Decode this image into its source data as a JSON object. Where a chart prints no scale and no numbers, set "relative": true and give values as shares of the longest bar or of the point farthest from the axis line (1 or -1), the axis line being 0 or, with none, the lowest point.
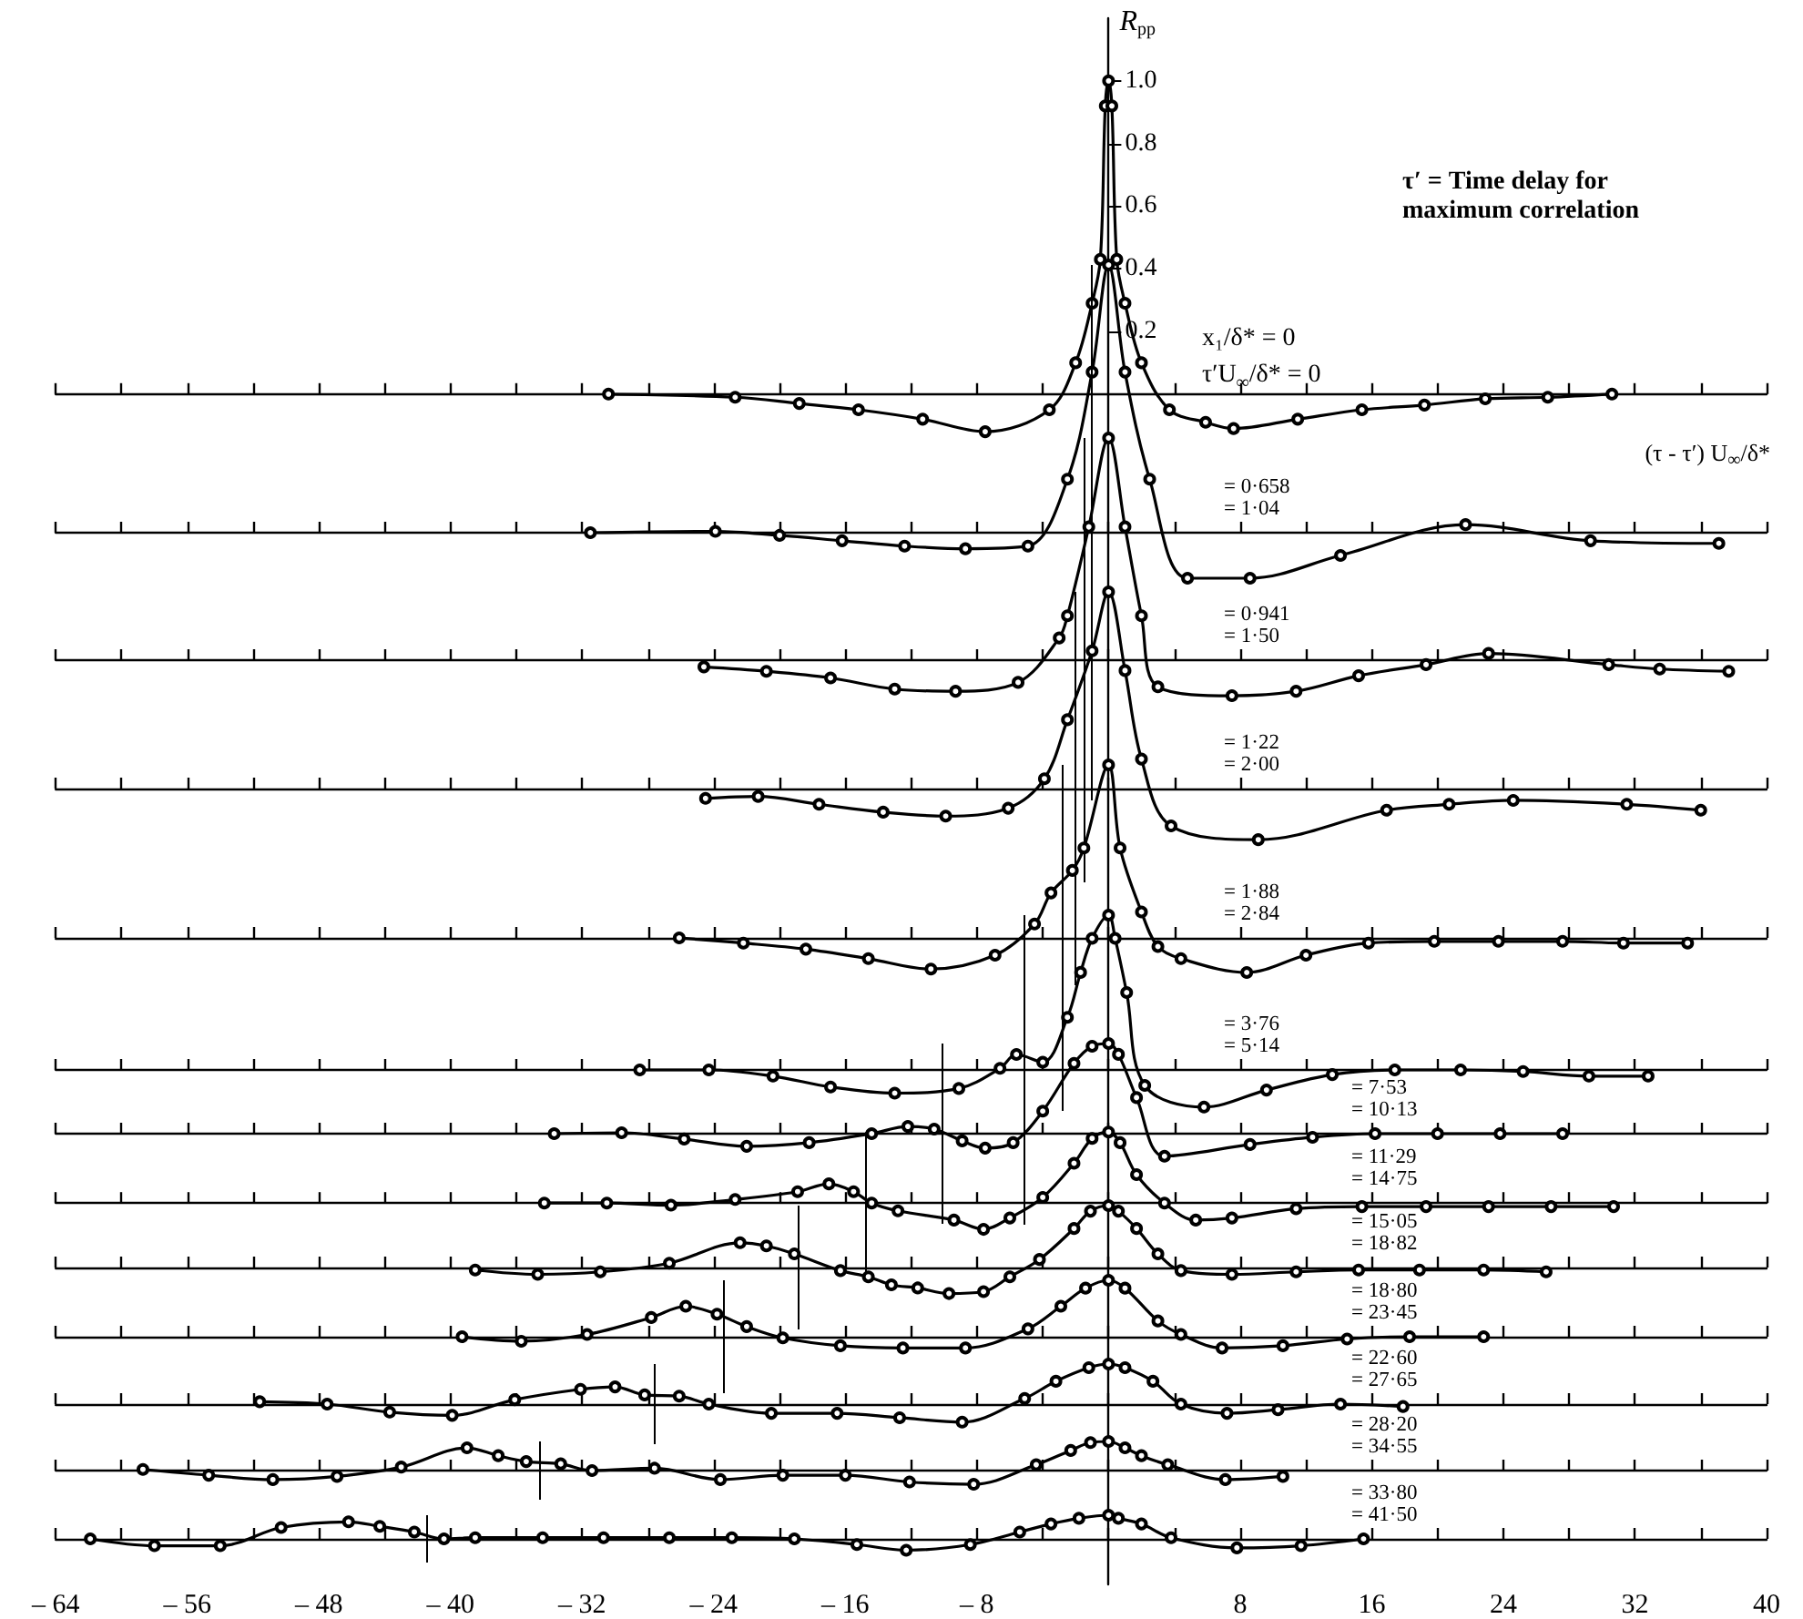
{
  "chart_data": [
    {
      "type": "line",
      "xlabel": "(τ - τ′) U$_{∞}$/δ*",
      "ylabel": "R$_{pp}$",
      "xlim": [
        -64,
        40
      ],
      "ylim": [
        -3.8,
        1.2
      ],
      "xticks": [
        {
          "value": -64,
          "label": "– 64"
        },
        {
          "value": -60,
          "label": null
        },
        {
          "value": -56,
          "label": "– 56"
        },
        {
          "value": -52,
          "label": null
        },
        {
          "value": -48,
          "label": "– 48"
        },
        {
          "value": -44,
          "label": null
        },
        {
          "value": -40,
          "label": "– 40"
        },
        {
          "value": -36,
          "label": null
        },
        {
          "value": -32,
          "label": "– 32"
        },
        {
          "value": -28,
          "label": null
        },
        {
          "value": -24,
          "label": "– 24"
        },
        {
          "value": -20,
          "label": null
        },
        {
          "value": -16,
          "label": "– 16"
        },
        {
          "value": -12,
          "label": null
        },
        {
          "value": -8,
          "label": "– 8"
        },
        {
          "value": -4,
          "label": null
        },
        {
          "value": 4,
          "label": null
        },
        8,
        {
          "value": 12,
          "label": null
        },
        16,
        {
          "value": 20,
          "label": null
        },
        24,
        {
          "value": 28,
          "label": null
        },
        32,
        {
          "value": 36,
          "label": null
        },
        40
      ],
      "yticks": [
        0.2,
        0.4,
        0.6,
        0.8,
        {
          "value": 1.0,
          "label": "1.0"
        }
      ],
      "annotations": [
        "τ′ = Time delay for maximum correlation",
        "x₁/δ* = 0",
        "τ′U$_{∞}$/δ* = 0"
      ],
      "marker": "circle",
      "color": "#000000",
      "x": [
        -30.4,
        -22.7,
        -18.8,
        -15.2,
        -11.3,
        -7.5,
        -3.6,
        -2,
        -1,
        -0.5,
        -0.2,
        0,
        0.2,
        0.5,
        1,
        2,
        3.7,
        5.9,
        7.6,
        11.5,
        15.4,
        19.2,
        22.9,
        26.7,
        30.6
      ],
      "values": [
        0,
        -0.01,
        -0.03,
        -0.05,
        -0.08,
        -0.12,
        -0.05,
        0.1,
        0.29,
        0.43,
        0.92,
        1.0,
        0.92,
        0.43,
        0.29,
        0.1,
        -0.05,
        -0.09,
        -0.11,
        -0.08,
        -0.05,
        -0.035,
        -0.015,
        -0.01,
        0
      ]
    },
    {
      "type": "line",
      "relative": true,
      "tick_labels": false,
      "xlim": [
        -64,
        40
      ],
      "xticks": [
        -64,
        -60,
        -56,
        -52,
        -48,
        -44,
        -40,
        -36,
        -32,
        -28,
        -24,
        -20,
        -16,
        -12,
        -8,
        -4,
        0,
        4,
        8,
        12,
        16,
        20,
        24,
        28,
        32,
        36,
        40
      ],
      "marker": "circle",
      "color": "#000000",
      "annotations": [
        "= 0·658",
        "= 1·04"
      ],
      "ref_lines": [
        {
          "axis": "x",
          "value": -1.04
        }
      ],
      "x": [
        -31.5,
        -23.9,
        -20,
        -16.2,
        -12.4,
        -8.7,
        -4.9,
        -2.5,
        -1,
        0,
        1,
        2.5,
        4.8,
        8.6,
        14.1,
        21.7,
        29.3,
        37.1
      ],
      "values": [
        0,
        0.005,
        -0.01,
        -0.03,
        -0.05,
        -0.06,
        -0.05,
        0.2,
        0.6,
        1,
        0.6,
        0.2,
        -0.17,
        -0.17,
        -0.085,
        0.03,
        -0.03,
        -0.04
      ]
    },
    {
      "type": "line",
      "relative": true,
      "tick_labels": false,
      "xlim": [
        -64,
        40
      ],
      "xticks": [
        -64,
        -60,
        -56,
        -52,
        -48,
        -44,
        -40,
        -36,
        -32,
        -28,
        -24,
        -20,
        -16,
        -12,
        -8,
        -4,
        0,
        4,
        8,
        12,
        16,
        20,
        24,
        28,
        32,
        36,
        40
      ],
      "marker": "circle",
      "color": "#000000",
      "annotations": [
        "= 0·941",
        "= 1·50"
      ],
      "ref_lines": [
        {
          "axis": "x",
          "value": -1.5
        }
      ],
      "x": [
        -24.6,
        -20.8,
        -16.9,
        -13,
        -9.3,
        -5.5,
        -3,
        -2.5,
        -1.2,
        0,
        1,
        2,
        3,
        7.5,
        11.4,
        15.2,
        19.3,
        23.1,
        30.4,
        33.5,
        37.7
      ],
      "values": [
        -0.03,
        -0.05,
        -0.08,
        -0.13,
        -0.14,
        -0.1,
        0.1,
        0.2,
        0.6,
        1,
        0.6,
        0.2,
        -0.12,
        -0.16,
        -0.14,
        -0.07,
        -0.02,
        0.03,
        -0.02,
        -0.04,
        -0.05
      ]
    },
    {
      "type": "line",
      "relative": true,
      "tick_labels": false,
      "xlim": [
        -64,
        40
      ],
      "xticks": [
        -64,
        -60,
        -56,
        -52,
        -48,
        -44,
        -40,
        -36,
        -32,
        -28,
        -24,
        -20,
        -16,
        -12,
        -8,
        -4,
        0,
        4,
        8,
        12,
        16,
        20,
        24,
        28,
        32,
        36,
        40
      ],
      "marker": "circle",
      "color": "#000000",
      "annotations": [
        "= 1·22",
        "= 2·00"
      ],
      "ref_lines": [
        {
          "axis": "x",
          "value": -2.0
        }
      ],
      "x": [
        -24.5,
        -21.3,
        -17.6,
        -13.7,
        -9.9,
        -6.1,
        -3.9,
        -2.5,
        -1,
        0,
        1,
        2,
        3.8,
        9.1,
        16.9,
        20.7,
        24.6,
        31.5,
        36
      ],
      "values": [
        -0.05,
        -0.04,
        -0.08,
        -0.12,
        -0.14,
        -0.1,
        0.05,
        0.35,
        0.7,
        1,
        0.6,
        0.15,
        -0.19,
        -0.26,
        -0.11,
        -0.08,
        -0.06,
        -0.08,
        -0.11
      ]
    },
    {
      "type": "line",
      "relative": true,
      "tick_labels": false,
      "xlim": [
        -64,
        40
      ],
      "xticks": [
        -64,
        -60,
        -56,
        -52,
        -48,
        -44,
        -40,
        -36,
        -32,
        -28,
        -24,
        -20,
        -16,
        -12,
        -8,
        -4,
        0,
        4,
        8,
        12,
        16,
        20,
        24,
        28,
        32,
        36,
        40
      ],
      "marker": "circle",
      "color": "#000000",
      "annotations": [
        "= 1·88",
        "= 2·84"
      ],
      "ref_lines": [
        {
          "axis": "x",
          "value": -2.84
        }
      ],
      "x": [
        -26.1,
        -22.2,
        -18.4,
        -14.6,
        -10.8,
        -6.9,
        -4.5,
        -3.5,
        -2.2,
        -1.5,
        0,
        0.7,
        2,
        3,
        4.4,
        8.4,
        12,
        15.8,
        19.8,
        23.7,
        27.6,
        31.3,
        35.2
      ],
      "values": [
        0,
        -0.03,
        -0.065,
        -0.12,
        -0.18,
        -0.1,
        0.08,
        0.26,
        0.39,
        0.52,
        1,
        0.52,
        0.15,
        -0.05,
        -0.12,
        -0.2,
        -0.1,
        -0.03,
        -0.02,
        -0.02,
        -0.02,
        -0.03,
        -0.03
      ]
    },
    {
      "type": "line",
      "relative": true,
      "tick_labels": false,
      "xlim": [
        -64,
        40
      ],
      "xticks": [
        -64,
        -60,
        -56,
        -52,
        -48,
        -44,
        -40,
        -36,
        -32,
        -28,
        -24,
        -20,
        -16,
        -12,
        -8,
        -4,
        0,
        4,
        8,
        12,
        16,
        20,
        24,
        28,
        32,
        36,
        40
      ],
      "marker": "circle",
      "color": "#000000",
      "annotations": [
        "= 3·76",
        "= 5·14"
      ],
      "ref_lines": [
        {
          "axis": "x",
          "value": -5.14
        }
      ],
      "x": [
        -28.5,
        -24.3,
        -20.4,
        -16.9,
        -13,
        -9.1,
        -6.6,
        -5.6,
        -4,
        -2.5,
        -1.7,
        -1,
        0,
        0.4,
        1.1,
        2.2,
        5.8,
        9.6,
        13.6,
        17.4,
        21.4,
        25.2,
        29.2,
        32.8
      ],
      "values": [
        0,
        0,
        -0.04,
        -0.11,
        -0.15,
        -0.12,
        0.01,
        0.1,
        0.05,
        0.34,
        0.63,
        0.85,
        1,
        0.85,
        0.5,
        -0.1,
        -0.24,
        -0.13,
        -0.03,
        0,
        0,
        -0.01,
        -0.04,
        -0.04
      ]
    },
    {
      "type": "line",
      "relative": true,
      "tick_labels": false,
      "xlim": [
        -64,
        40
      ],
      "xticks": [
        -64,
        -60,
        -56,
        -52,
        -48,
        -44,
        -40,
        -36,
        -32,
        -28,
        -24,
        -20,
        -16,
        -12,
        -8,
        -4,
        0,
        4,
        8,
        12,
        16,
        20,
        24,
        28,
        32,
        36,
        40
      ],
      "marker": "circle",
      "color": "#000000",
      "annotations": [
        "= 7·53",
        "= 10·13"
      ],
      "ref_lines": [
        {
          "axis": "x",
          "value": -10.13
        }
      ],
      "x": [
        -33.7,
        -29.6,
        -25.8,
        -22,
        -18.2,
        -14.4,
        -12.2,
        -10.6,
        -8.9,
        -7.5,
        -5.8,
        -4,
        -2.1,
        -1,
        0,
        0.6,
        1.7,
        3.4,
        8.6,
        12.4,
        16.2,
        20,
        23.8,
        27.6
      ],
      "values": [
        0,
        0.01,
        -0.06,
        -0.14,
        -0.1,
        0,
        0.08,
        0.05,
        -0.08,
        -0.16,
        -0.1,
        0.25,
        0.78,
        0.97,
        1,
        0.88,
        0.4,
        -0.25,
        -0.12,
        -0.04,
        0,
        0,
        0,
        0
      ]
    },
    {
      "type": "line",
      "relative": true,
      "tick_labels": false,
      "xlim": [
        -64,
        40
      ],
      "xticks": [
        -64,
        -60,
        -56,
        -52,
        -48,
        -44,
        -40,
        -36,
        -32,
        -28,
        -24,
        -20,
        -16,
        -12,
        -8,
        -4,
        0,
        4,
        8,
        12,
        16,
        20,
        24,
        28,
        32,
        36,
        40
      ],
      "marker": "circle",
      "color": "#000000",
      "annotations": [
        "= 11·29",
        "= 14·75"
      ],
      "ref_lines": [
        {
          "axis": "x",
          "value": -14.75
        }
      ],
      "x": [
        -34.3,
        -30.5,
        -26.6,
        -22.7,
        -18.9,
        -17,
        -15.5,
        -14.4,
        -12.8,
        -9.4,
        -7.6,
        -6,
        -4,
        -2.1,
        -1,
        0,
        0.7,
        1.7,
        3.4,
        5.3,
        7.5,
        11.4,
        15.4,
        19.3,
        23.1,
        26.9,
        30.7
      ],
      "values": [
        0,
        0,
        -0.03,
        0.05,
        0.16,
        0.27,
        0.16,
        0,
        -0.11,
        -0.24,
        -0.37,
        -0.21,
        0.08,
        0.56,
        0.91,
        1,
        0.85,
        0.4,
        0,
        -0.24,
        -0.21,
        -0.08,
        -0.05,
        -0.05,
        -0.05,
        -0.05,
        -0.05
      ]
    },
    {
      "type": "line",
      "relative": true,
      "tick_labels": false,
      "xlim": [
        -64,
        40
      ],
      "xticks": [
        -64,
        -60,
        -56,
        -52,
        -48,
        -44,
        -40,
        -36,
        -32,
        -28,
        -24,
        -20,
        -16,
        -12,
        -8,
        -4,
        0,
        4,
        8,
        12,
        16,
        20,
        24,
        28,
        32,
        36,
        40
      ],
      "marker": "circle",
      "color": "#000000",
      "annotations": [
        "= 15·05",
        "= 18·82"
      ],
      "ref_lines": [
        {
          "axis": "x",
          "value": -18.82
        }
      ],
      "x": [
        -38.5,
        -34.7,
        -30.9,
        -26.7,
        -22.4,
        -20.8,
        -19.1,
        -16.3,
        -14.6,
        -13.2,
        -11.6,
        -9.7,
        -7.6,
        -6,
        -4.2,
        -2.1,
        -1.1,
        0,
        0.6,
        1.7,
        3,
        4.4,
        7.5,
        11.4,
        15.2,
        18.9,
        22.8,
        26.6
      ],
      "values": [
        -0.04,
        -0.11,
        -0.07,
        0.07,
        0.4,
        0.35,
        0.22,
        -0.05,
        -0.15,
        -0.28,
        -0.33,
        -0.42,
        -0.39,
        -0.15,
        0.13,
        0.63,
        0.91,
        1,
        0.91,
        0.63,
        0.22,
        -0.05,
        -0.11,
        -0.07,
        -0.04,
        -0.04,
        -0.04,
        -0.07
      ]
    },
    {
      "type": "line",
      "relative": true,
      "tick_labels": false,
      "xlim": [
        -64,
        40
      ],
      "xticks": [
        -64,
        -60,
        -56,
        -52,
        -48,
        -44,
        -40,
        -36,
        -32,
        -28,
        -24,
        -20,
        -16,
        -12,
        -8,
        -4,
        0,
        4,
        8,
        12,
        16,
        20,
        24,
        28,
        32,
        36,
        40
      ],
      "marker": "circle",
      "color": "#000000",
      "annotations": [
        "= 18·80",
        "= 23·45"
      ],
      "ref_lines": [
        {
          "axis": "x",
          "value": -23.45
        }
      ],
      "x": [
        -39.3,
        -35.7,
        -31.7,
        -27.8,
        -25.7,
        -23.8,
        -22,
        -19.8,
        -16.3,
        -12.5,
        -8.7,
        -4.9,
        -2.9,
        -1.4,
        0,
        1,
        3,
        4.4,
        6.9,
        10.6,
        14.5,
        18.3,
        22.8
      ],
      "values": [
        0,
        -0.08,
        0.04,
        0.34,
        0.54,
        0.4,
        0.18,
        -0.02,
        -0.16,
        -0.2,
        -0.2,
        0.14,
        0.54,
        0.86,
        1,
        0.86,
        0.28,
        0.04,
        -0.2,
        -0.16,
        -0.04,
        0,
        0
      ]
    },
    {
      "type": "line",
      "relative": true,
      "tick_labels": false,
      "xlim": [
        -64,
        40
      ],
      "xticks": [
        -64,
        -60,
        -56,
        -52,
        -48,
        -44,
        -40,
        -36,
        -32,
        -28,
        -24,
        -20,
        -16,
        -12,
        -8,
        -4,
        0,
        4,
        8,
        12,
        16,
        20,
        24,
        28,
        32,
        36,
        40
      ],
      "marker": "circle",
      "color": "#000000",
      "annotations": [
        "= 22·60",
        "= 27·65"
      ],
      "ref_lines": [
        {
          "axis": "x",
          "value": -27.65
        }
      ],
      "x": [
        -51.6,
        -47.5,
        -43.7,
        -39.9,
        -36.1,
        -32.1,
        -30,
        -28.2,
        -26.1,
        -24.3,
        -20.5,
        -16.5,
        -12.7,
        -8.9,
        -5.1,
        -3.2,
        -1.2,
        0,
        1,
        2.7,
        4.4,
        7.2,
        10.3,
        14.1,
        17.9
      ],
      "values": [
        0.06,
        0,
        -0.2,
        -0.28,
        0.11,
        0.37,
        0.43,
        0.23,
        0.2,
        0,
        -0.23,
        -0.23,
        -0.34,
        -0.45,
        0.14,
        0.57,
        0.91,
        1,
        0.91,
        0.57,
        0,
        -0.23,
        -0.14,
        0,
        -0.06
      ]
    },
    {
      "type": "line",
      "relative": true,
      "tick_labels": false,
      "xlim": [
        -64,
        40
      ],
      "xticks": [
        -64,
        -60,
        -56,
        -52,
        -48,
        -44,
        -40,
        -36,
        -32,
        -28,
        -24,
        -20,
        -16,
        -12,
        -8,
        -4,
        0,
        4,
        8,
        12,
        16,
        20,
        24,
        28,
        32,
        36,
        40
      ],
      "marker": "circle",
      "color": "#000000",
      "annotations": [
        "= 28·20",
        "= 34·55"
      ],
      "ref_lines": [
        {
          "axis": "x",
          "value": -34.55
        }
      ],
      "x": [
        -58.7,
        -54.7,
        -50.8,
        -46.9,
        -43,
        -39,
        -37.1,
        -35.4,
        -33.3,
        -31.4,
        -27.6,
        -23.6,
        -19.8,
        -16,
        -12.1,
        -8.2,
        -4.4,
        -2.3,
        -1.1,
        0,
        1,
        2,
        3.6,
        7.1,
        10.6
      ],
      "values": [
        0.04,
        -0.16,
        -0.31,
        -0.2,
        0.12,
        0.78,
        0.51,
        0.31,
        0.23,
        0,
        0.08,
        -0.31,
        -0.16,
        -0.16,
        -0.39,
        -0.47,
        0.2,
        0.69,
        0.96,
        1,
        0.78,
        0.51,
        0.2,
        -0.31,
        -0.2
      ]
    },
    {
      "type": "line",
      "relative": true,
      "tick_labels": false,
      "xlim": [
        -64,
        40
      ],
      "xticks": [
        -64,
        -60,
        -56,
        -52,
        -48,
        -44,
        -40,
        -36,
        -32,
        -28,
        -24,
        -20,
        -16,
        -12,
        -8,
        -4,
        0,
        4,
        8,
        12,
        16,
        20,
        24,
        28,
        32,
        36,
        40
      ],
      "marker": "circle",
      "color": "#000000",
      "annotations": [
        "= 33·80",
        "= 41·50"
      ],
      "ref_lines": [
        {
          "axis": "x",
          "value": -41.5
        }
      ],
      "x": [
        -61.9,
        -58,
        -54,
        -50.3,
        -46.2,
        -44.3,
        -42.2,
        -40.4,
        -38.5,
        -34.4,
        -30.7,
        -26.7,
        -22.9,
        -19.1,
        -15.3,
        -12.3,
        -8.4,
        -5.4,
        -3.5,
        -1.8,
        0,
        0.6,
        2,
        3.8,
        7.8,
        11.7,
        15.5
      ],
      "values": [
        0,
        -0.29,
        -0.29,
        0.48,
        0.72,
        0.53,
        0.29,
        0,
        0.05,
        0.05,
        0.05,
        0.05,
        0.05,
        0,
        -0.24,
        -0.48,
        -0.24,
        0.29,
        0.63,
        0.87,
        1,
        0.87,
        0.63,
        0.05,
        -0.38,
        -0.29,
        0
      ]
    }
  ]
}
